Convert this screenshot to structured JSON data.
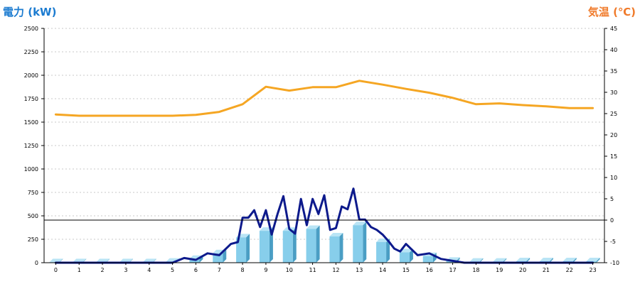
{
  "chart_data": {
    "type": "bar-line-combo",
    "left_axis_title": "電力 (kW)",
    "right_axis_title": "気温 (℃)",
    "left_ylim": [
      0,
      2500
    ],
    "left_ticks": [
      0,
      250,
      500,
      750,
      1000,
      1250,
      1500,
      1750,
      2000,
      2250,
      2500
    ],
    "right_ylim": [
      -10,
      45
    ],
    "right_ticks": [
      -10,
      -5,
      0,
      5,
      10,
      15,
      20,
      25,
      30,
      35,
      40,
      45
    ],
    "categories": [
      "0",
      "1",
      "2",
      "3",
      "4",
      "5",
      "6",
      "7",
      "8",
      "9",
      "10",
      "11",
      "12",
      "13",
      "14",
      "15",
      "16",
      "17",
      "18",
      "19",
      "20",
      "21",
      "22",
      "23"
    ],
    "grid": "horizontal dotted",
    "colors": {
      "bars": "#87ceeb",
      "power_line": "#0d1a8c",
      "temp_line": "#f5a623",
      "zero_line": "#000000"
    },
    "series": [
      {
        "kind": "bar",
        "axis": "left",
        "values": [
          5,
          5,
          5,
          5,
          5,
          10,
          40,
          100,
          270,
          340,
          340,
          360,
          280,
          400,
          220,
          110,
          70,
          20,
          10,
          10,
          15,
          15,
          15,
          15
        ]
      },
      {
        "kind": "line",
        "axis": "left",
        "x": [
          0,
          1,
          2,
          3,
          4,
          5,
          5.5,
          6,
          6.5,
          7,
          7.5,
          7.8,
          8,
          8.25,
          8.5,
          8.75,
          9,
          9.25,
          9.5,
          9.75,
          10,
          10.25,
          10.5,
          10.75,
          11,
          11.25,
          11.5,
          11.75,
          12,
          12.25,
          12.5,
          12.75,
          13,
          13.25,
          13.5,
          13.75,
          14,
          14.25,
          14.5,
          14.75,
          15,
          15.5,
          16,
          16.5,
          17,
          17.5,
          18,
          19,
          20,
          21,
          22,
          23
        ],
        "values": [
          0,
          0,
          0,
          0,
          0,
          0,
          50,
          30,
          100,
          80,
          200,
          220,
          480,
          480,
          560,
          380,
          560,
          300,
          520,
          710,
          360,
          310,
          680,
          400,
          680,
          520,
          720,
          350,
          370,
          600,
          570,
          790,
          460,
          460,
          380,
          350,
          300,
          230,
          150,
          120,
          200,
          80,
          100,
          40,
          20,
          0,
          0,
          0,
          0,
          0,
          0,
          0
        ]
      },
      {
        "kind": "line",
        "axis": "right",
        "x": [
          0,
          1,
          2,
          3,
          4,
          5,
          6,
          7,
          8,
          9,
          10,
          11,
          12,
          13,
          14,
          15,
          16,
          17,
          18,
          19,
          20,
          21,
          22,
          23
        ],
        "values": [
          24.8,
          24.5,
          24.5,
          24.5,
          24.5,
          24.5,
          24.7,
          25.4,
          27.2,
          31.3,
          30.4,
          31.2,
          31.2,
          32.7,
          31.8,
          30.8,
          29.9,
          28.7,
          27.2,
          27.4,
          27.0,
          26.7,
          26.3,
          26.3
        ]
      }
    ]
  }
}
